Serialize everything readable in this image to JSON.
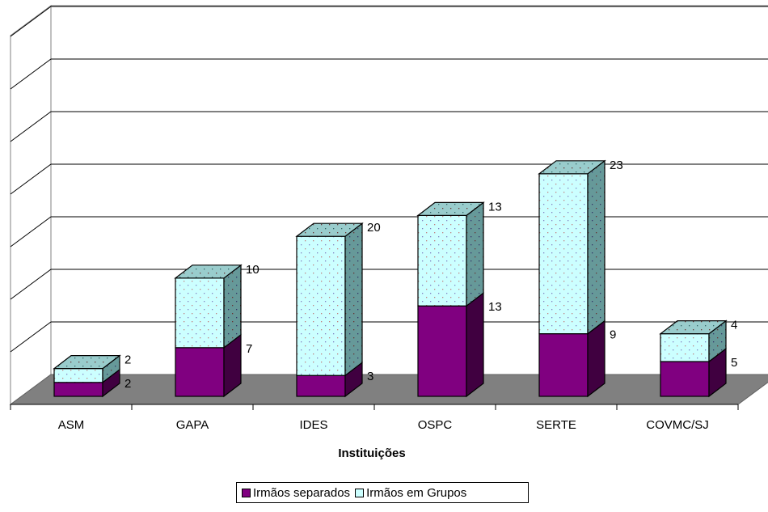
{
  "chart_data": {
    "type": "bar",
    "stacked": true,
    "three_d": true,
    "categories": [
      "ASM",
      "GAPA",
      "IDES",
      "OSPC",
      "SERTE",
      "COVMC/SJ"
    ],
    "series": [
      {
        "name": "Irmãos separados",
        "values": [
          2,
          7,
          3,
          13,
          9,
          5
        ],
        "color": "#800080"
      },
      {
        "name": "Irmãos em Grupos",
        "values": [
          2,
          10,
          20,
          13,
          23,
          4
        ],
        "color": "#ccffff"
      }
    ],
    "xlabel": "Instituições",
    "ylabel": "",
    "ylim": [
      0,
      35
    ],
    "grid": true,
    "legend_position": "bottom"
  }
}
